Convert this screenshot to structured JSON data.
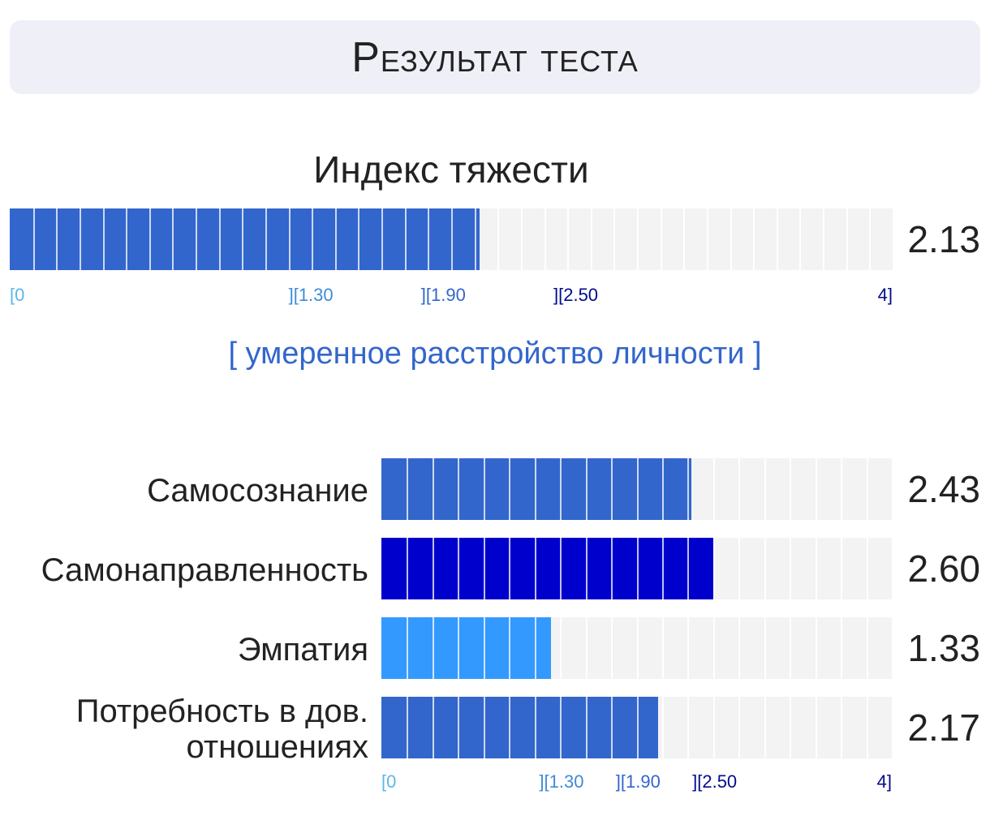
{
  "header": {
    "title": "Результат теста"
  },
  "severity": {
    "title": "Индекс тяжести",
    "value": 2.13,
    "value_label": "2.13",
    "color": "#3366cc"
  },
  "diagnosis": "[ умеренное расстройство личности ]",
  "scale": {
    "min": 0,
    "max": 4,
    "top_labels": [
      {
        "text": "[0",
        "value": 0,
        "color": "#5bb7e8"
      },
      {
        "text": "][1.30",
        "value": 1.3,
        "color": "#3f8bd8"
      },
      {
        "text": "][1.90",
        "value": 1.9,
        "color": "#3366cc"
      },
      {
        "text": "][2.50",
        "value": 2.5,
        "color": "#000a8c"
      },
      {
        "text": "4]",
        "value": 4,
        "color": "#000a8c"
      }
    ],
    "bottom_labels": [
      {
        "text": "[0",
        "value": 0,
        "color": "#5bb7e8"
      },
      {
        "text": "][1.30",
        "value": 1.3,
        "color": "#3f8bd8"
      },
      {
        "text": "][1.90",
        "value": 1.9,
        "color": "#3366cc"
      },
      {
        "text": "][2.50",
        "value": 2.5,
        "color": "#000a8c"
      },
      {
        "text": "4]",
        "value": 4,
        "color": "#000a8c"
      }
    ]
  },
  "chart_data": {
    "type": "bar",
    "orientation": "horizontal",
    "xlim": [
      0,
      4
    ],
    "categories": [
      "Самосознание",
      "Самонаправленность",
      "Эмпатия",
      "Потребность в дов. отношениях"
    ],
    "category_lines": [
      [
        "Самосознание"
      ],
      [
        "Самонаправленность"
      ],
      [
        "Эмпатия"
      ],
      [
        "Потребность в дов.",
        "отношениях"
      ]
    ],
    "values": [
      2.43,
      2.6,
      1.33,
      2.17
    ],
    "value_labels": [
      "2.43",
      "2.60",
      "1.33",
      "2.17"
    ],
    "colors": [
      "#3366cc",
      "#0000cc",
      "#3399ff",
      "#3366cc"
    ]
  }
}
